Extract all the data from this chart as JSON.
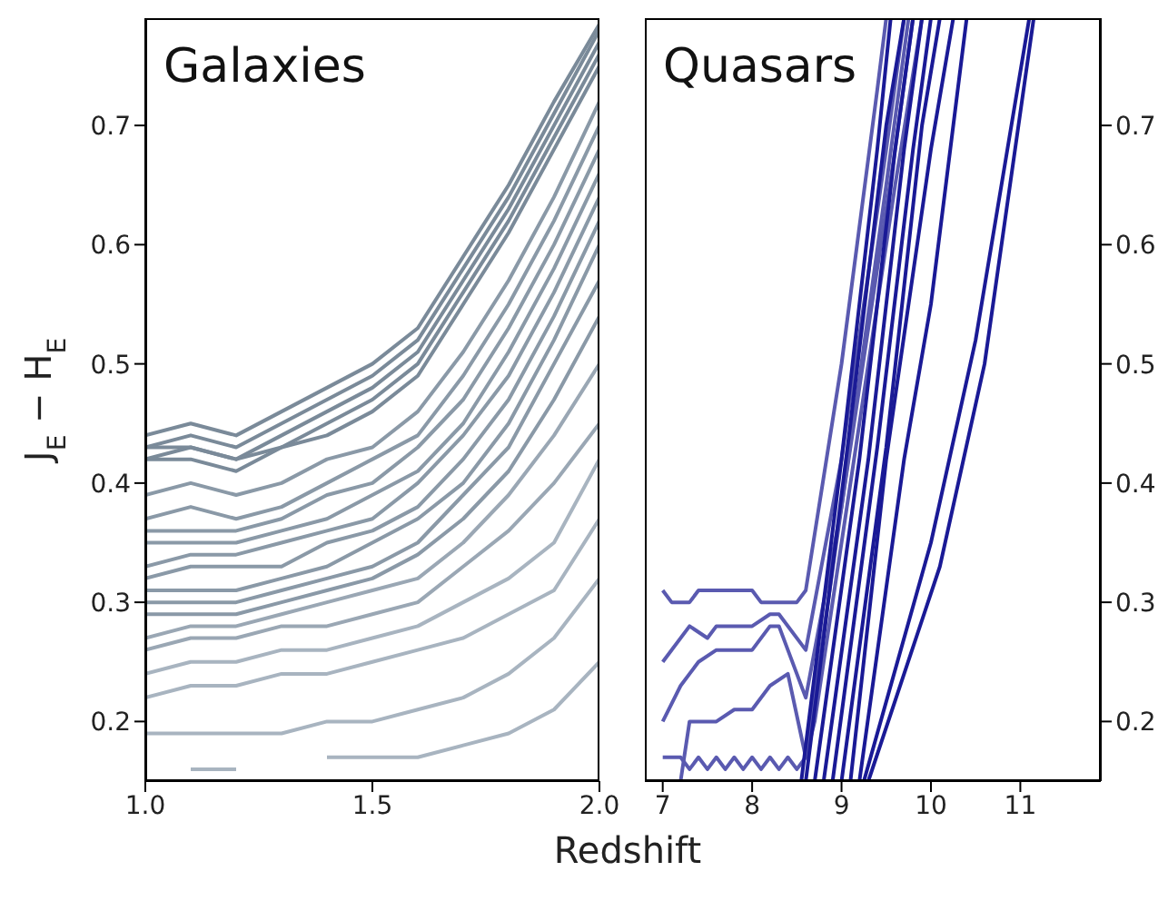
{
  "chart_data": [
    {
      "type": "line",
      "title": "Galaxies",
      "xlabel": "Redshift",
      "ylabel": "J$_{E}$ − H$_{E}$",
      "x": [
        1.0,
        1.1,
        1.2,
        1.3,
        1.4,
        1.5,
        1.6,
        1.7,
        1.8,
        1.9,
        2.0
      ],
      "xlim": [
        1.0,
        2.0
      ],
      "xticks": [
        {
          "value": 1.0,
          "label": "1.0"
        },
        {
          "value": 1.5,
          "label": "1.5"
        },
        {
          "value": 2.0,
          "label": "2.0"
        }
      ],
      "ylim": [
        0.15,
        0.79
      ],
      "yticks": [
        0.2,
        0.3,
        0.4,
        0.5,
        0.6,
        0.7
      ],
      "series": [
        {
          "color": "#7a8a99",
          "values": [
            0.44,
            0.45,
            0.44,
            0.46,
            0.48,
            0.5,
            0.53,
            0.59,
            0.65,
            0.72,
            0.785
          ]
        },
        {
          "color": "#7a8a99",
          "values": [
            0.43,
            0.44,
            0.43,
            0.45,
            0.47,
            0.49,
            0.52,
            0.58,
            0.64,
            0.71,
            0.78
          ]
        },
        {
          "color": "#7a8a99",
          "values": [
            0.42,
            0.43,
            0.42,
            0.44,
            0.46,
            0.48,
            0.51,
            0.57,
            0.63,
            0.7,
            0.77
          ]
        },
        {
          "color": "#7a8a99",
          "values": [
            0.43,
            0.43,
            0.42,
            0.43,
            0.45,
            0.47,
            0.5,
            0.56,
            0.62,
            0.69,
            0.76
          ]
        },
        {
          "color": "#7a8a99",
          "values": [
            0.42,
            0.42,
            0.41,
            0.43,
            0.44,
            0.46,
            0.49,
            0.55,
            0.61,
            0.68,
            0.75
          ]
        },
        {
          "color": "#8a99a7",
          "values": [
            0.39,
            0.4,
            0.39,
            0.4,
            0.42,
            0.43,
            0.46,
            0.51,
            0.57,
            0.64,
            0.72
          ]
        },
        {
          "color": "#8a99a7",
          "values": [
            0.37,
            0.38,
            0.37,
            0.38,
            0.4,
            0.42,
            0.44,
            0.49,
            0.55,
            0.62,
            0.7
          ]
        },
        {
          "color": "#8a99a7",
          "values": [
            0.36,
            0.36,
            0.36,
            0.37,
            0.39,
            0.4,
            0.43,
            0.47,
            0.53,
            0.6,
            0.68
          ]
        },
        {
          "color": "#8a99a7",
          "values": [
            0.35,
            0.35,
            0.35,
            0.36,
            0.37,
            0.39,
            0.41,
            0.45,
            0.51,
            0.58,
            0.66
          ]
        },
        {
          "color": "#8a99a7",
          "values": [
            0.33,
            0.34,
            0.34,
            0.35,
            0.36,
            0.37,
            0.4,
            0.44,
            0.49,
            0.56,
            0.64
          ]
        },
        {
          "color": "#8a99a7",
          "values": [
            0.32,
            0.33,
            0.33,
            0.33,
            0.35,
            0.36,
            0.38,
            0.42,
            0.47,
            0.54,
            0.62
          ]
        },
        {
          "color": "#8a99a7",
          "values": [
            0.31,
            0.31,
            0.31,
            0.32,
            0.33,
            0.35,
            0.37,
            0.4,
            0.45,
            0.52,
            0.6
          ]
        },
        {
          "color": "#8a99a7",
          "values": [
            0.3,
            0.3,
            0.3,
            0.31,
            0.32,
            0.33,
            0.35,
            0.39,
            0.43,
            0.5,
            0.57
          ]
        },
        {
          "color": "#8a99a7",
          "values": [
            0.29,
            0.29,
            0.29,
            0.3,
            0.31,
            0.32,
            0.34,
            0.37,
            0.41,
            0.47,
            0.54
          ]
        },
        {
          "color": "#9aa7b4",
          "values": [
            0.27,
            0.28,
            0.28,
            0.29,
            0.3,
            0.31,
            0.32,
            0.35,
            0.39,
            0.44,
            0.5
          ]
        },
        {
          "color": "#9aa7b4",
          "values": [
            0.26,
            0.27,
            0.27,
            0.28,
            0.28,
            0.29,
            0.3,
            0.33,
            0.36,
            0.4,
            0.45
          ]
        },
        {
          "color": "#a8b4c0",
          "values": [
            0.24,
            0.25,
            0.25,
            0.26,
            0.26,
            0.27,
            0.28,
            0.3,
            0.32,
            0.35,
            0.42
          ]
        },
        {
          "color": "#a8b4c0",
          "values": [
            0.22,
            0.23,
            0.23,
            0.24,
            0.24,
            0.25,
            0.26,
            0.27,
            0.29,
            0.31,
            0.37
          ]
        },
        {
          "color": "#a8b4c0",
          "values": [
            0.19,
            0.19,
            0.19,
            0.19,
            0.2,
            0.2,
            0.21,
            0.22,
            0.24,
            0.27,
            0.32
          ]
        },
        {
          "color": "#a8b4c0",
          "values": [
            null,
            0.16,
            0.16,
            null,
            0.17,
            0.17,
            0.17,
            0.18,
            0.19,
            0.21,
            0.25
          ]
        }
      ]
    },
    {
      "type": "line",
      "title": "Quasars",
      "xlim": [
        6.8,
        11.9
      ],
      "xticks": [
        7,
        8,
        9,
        10,
        11
      ],
      "ylim": [
        0.15,
        0.79
      ],
      "yticks": [
        0.2,
        0.3,
        0.4,
        0.5,
        0.6,
        0.7
      ],
      "series": [
        {
          "color": "#5a5ab0",
          "x": [
            7.0,
            7.1,
            7.3,
            7.4,
            8.0,
            8.1,
            8.5,
            8.6,
            9.0,
            9.4,
            9.5
          ],
          "values": [
            0.31,
            0.3,
            0.3,
            0.31,
            0.31,
            0.3,
            0.3,
            0.31,
            0.5,
            0.73,
            0.79
          ]
        },
        {
          "color": "#5a5ab0",
          "x": [
            7.0,
            7.3,
            7.5,
            7.6,
            8.0,
            8.2,
            8.3,
            8.6,
            9.0,
            9.5,
            9.7
          ],
          "values": [
            0.25,
            0.28,
            0.27,
            0.28,
            0.28,
            0.29,
            0.29,
            0.26,
            0.42,
            0.68,
            0.79
          ]
        },
        {
          "color": "#5a5ab0",
          "x": [
            7.0,
            7.2,
            7.4,
            7.6,
            8.0,
            8.2,
            8.3,
            8.6,
            9.0,
            9.6,
            9.8
          ],
          "values": [
            0.2,
            0.23,
            0.25,
            0.26,
            0.26,
            0.28,
            0.28,
            0.22,
            0.38,
            0.68,
            0.79
          ]
        },
        {
          "color": "#5a5ab0",
          "x": [
            7.2,
            7.3,
            7.6,
            7.8,
            8.0,
            8.2,
            8.4,
            8.6,
            8.7,
            9.2,
            9.6,
            9.9
          ],
          "values": [
            0.15,
            0.2,
            0.2,
            0.21,
            0.21,
            0.23,
            0.24,
            0.17,
            0.2,
            0.45,
            0.65,
            0.79
          ]
        },
        {
          "color": "#5a5ab0",
          "x": [
            7.0,
            7.2,
            7.3,
            7.4,
            7.5,
            7.6,
            7.7,
            7.8,
            7.9,
            8.0,
            8.1,
            8.2,
            8.3,
            8.4,
            8.5,
            8.6,
            9.0,
            9.5,
            9.75
          ],
          "values": [
            0.17,
            0.17,
            0.16,
            0.17,
            0.16,
            0.17,
            0.16,
            0.17,
            0.16,
            0.17,
            0.16,
            0.17,
            0.16,
            0.17,
            0.16,
            0.17,
            0.38,
            0.65,
            0.79
          ]
        },
        {
          "color": "#1a1a96",
          "x": [
            8.55,
            9.0,
            9.4,
            9.55
          ],
          "values": [
            0.15,
            0.42,
            0.68,
            0.79
          ]
        },
        {
          "color": "#1a1a96",
          "x": [
            8.6,
            9.1,
            9.5,
            9.7
          ],
          "values": [
            0.15,
            0.45,
            0.7,
            0.79
          ]
        },
        {
          "color": "#1a1a96",
          "x": [
            8.7,
            9.2,
            9.6,
            9.8
          ],
          "values": [
            0.15,
            0.42,
            0.68,
            0.79
          ]
        },
        {
          "color": "#1a1a96",
          "x": [
            8.8,
            9.3,
            9.7,
            9.9
          ],
          "values": [
            0.15,
            0.42,
            0.68,
            0.79
          ]
        },
        {
          "color": "#1a1a96",
          "x": [
            8.9,
            9.4,
            9.8,
            10.0
          ],
          "values": [
            0.15,
            0.43,
            0.68,
            0.79
          ]
        },
        {
          "color": "#1a1a96",
          "x": [
            9.0,
            9.5,
            9.9,
            10.1
          ],
          "values": [
            0.15,
            0.43,
            0.7,
            0.79
          ]
        },
        {
          "color": "#1a1a96",
          "x": [
            9.1,
            9.5,
            10.0,
            10.25
          ],
          "values": [
            0.15,
            0.42,
            0.68,
            0.79
          ]
        },
        {
          "color": "#1a1a96",
          "x": [
            9.2,
            9.7,
            10.0,
            10.4
          ],
          "values": [
            0.15,
            0.42,
            0.55,
            0.79
          ]
        },
        {
          "color": "#1a1a96",
          "x": [
            9.25,
            10.0,
            10.5,
            11.1
          ],
          "values": [
            0.15,
            0.35,
            0.52,
            0.79
          ]
        },
        {
          "color": "#1a1a96",
          "x": [
            9.3,
            10.1,
            10.6,
            11.15
          ],
          "values": [
            0.15,
            0.33,
            0.5,
            0.79
          ]
        }
      ]
    }
  ]
}
